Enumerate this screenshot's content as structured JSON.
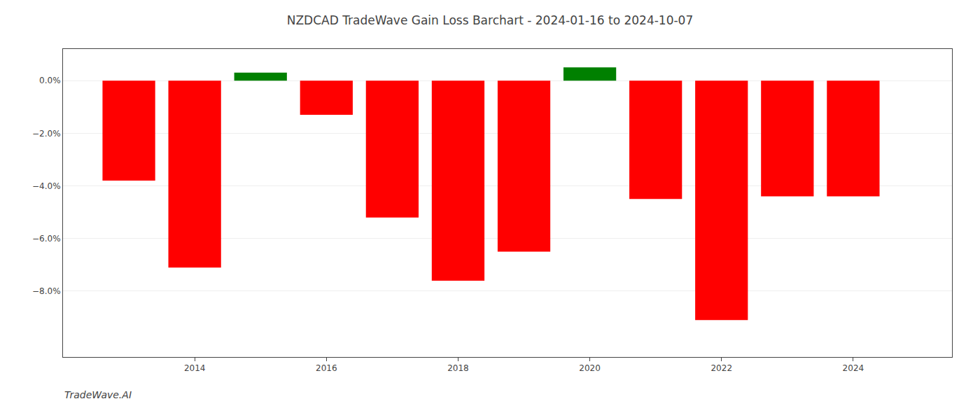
{
  "chart_data": {
    "type": "bar",
    "title": "NZDCAD TradeWave Gain Loss Barchart - 2024-01-16 to 2024-10-07",
    "annotations": [
      "TradeWave.AI"
    ],
    "x": [
      2013,
      2014,
      2015,
      2016,
      2017,
      2018,
      2019,
      2020,
      2021,
      2022,
      2023,
      2024
    ],
    "values": [
      -0.038,
      -0.071,
      0.003,
      -0.013,
      -0.052,
      -0.076,
      -0.065,
      0.005,
      -0.045,
      -0.091,
      -0.044,
      -0.044
    ],
    "colors": [
      "red",
      "red",
      "green",
      "red",
      "red",
      "red",
      "red",
      "green",
      "red",
      "red",
      "red",
      "red"
    ],
    "xlim": [
      2012.0,
      2025.5
    ],
    "xticks": [
      2014,
      2016,
      2018,
      2020,
      2022,
      2024
    ],
    "ylim": [
      -0.105,
      0.012
    ],
    "yticks": [
      {
        "value": 0.0,
        "label": "0.0%"
      },
      {
        "value": -0.02,
        "label": "−2.0%"
      },
      {
        "value": -0.04,
        "label": "−4.0%"
      },
      {
        "value": -0.06,
        "label": "−6.0%"
      },
      {
        "value": -0.08,
        "label": "−8.0%"
      }
    ],
    "grid": true
  }
}
